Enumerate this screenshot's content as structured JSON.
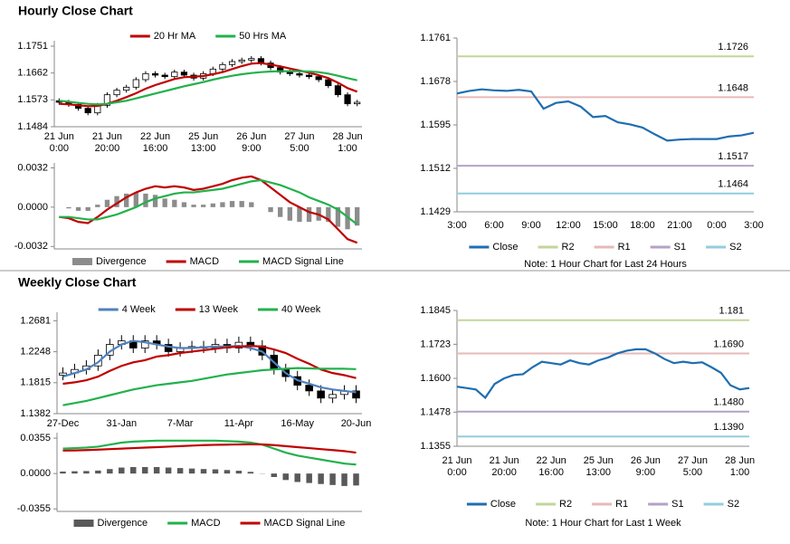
{
  "headings": [
    "Hourly Close Chart",
    "Weekly Close Chart"
  ],
  "chart_data": [
    {
      "type": "candlestick",
      "up_color": "#ffffff",
      "down_color": "#000000",
      "categories": [
        [
          "21 Jun",
          "0:00"
        ],
        null,
        null,
        null,
        null,
        [
          "21 Jun",
          "20:00"
        ],
        null,
        null,
        null,
        null,
        [
          "22 Jun",
          "16:00"
        ],
        null,
        null,
        null,
        null,
        [
          "25 Jun",
          "13:00"
        ],
        null,
        null,
        null,
        null,
        [
          "26 Jun",
          "9:00"
        ],
        null,
        null,
        null,
        null,
        [
          "27 Jun",
          "5:00"
        ],
        null,
        null,
        null,
        null,
        [
          "28 Jun",
          "1:00"
        ],
        null
      ],
      "open": [
        1.157,
        1.1565,
        1.1558,
        1.1545,
        1.153,
        1.1555,
        1.159,
        1.1605,
        1.1615,
        1.164,
        1.166,
        1.1655,
        1.165,
        1.1665,
        1.1655,
        1.1645,
        1.166,
        1.1675,
        1.169,
        1.17,
        1.1705,
        1.171,
        1.1695,
        1.168,
        1.1665,
        1.166,
        1.1655,
        1.165,
        1.164,
        1.162,
        1.159,
        1.156
      ],
      "high": [
        1.1578,
        1.1573,
        1.1566,
        1.1553,
        1.1563,
        1.1598,
        1.1613,
        1.1623,
        1.1648,
        1.1668,
        1.1668,
        1.1663,
        1.1673,
        1.1673,
        1.1663,
        1.1668,
        1.1683,
        1.1698,
        1.1708,
        1.1713,
        1.1718,
        1.1718,
        1.1703,
        1.1688,
        1.1673,
        1.1668,
        1.1663,
        1.1658,
        1.1648,
        1.1628,
        1.1598,
        1.1573
      ],
      "low": [
        1.1557,
        1.155,
        1.1537,
        1.1522,
        1.1522,
        1.1547,
        1.1582,
        1.1597,
        1.1607,
        1.1632,
        1.1647,
        1.1642,
        1.1642,
        1.1647,
        1.1637,
        1.1637,
        1.1652,
        1.1667,
        1.1682,
        1.1692,
        1.1697,
        1.1687,
        1.1672,
        1.1657,
        1.1652,
        1.1647,
        1.1642,
        1.1632,
        1.1612,
        1.1582,
        1.1552,
        1.1552
      ],
      "close": [
        1.1565,
        1.1558,
        1.1545,
        1.153,
        1.1555,
        1.159,
        1.1605,
        1.1615,
        1.164,
        1.166,
        1.1655,
        1.165,
        1.1665,
        1.1655,
        1.1645,
        1.166,
        1.1675,
        1.169,
        1.17,
        1.1705,
        1.171,
        1.1695,
        1.168,
        1.1665,
        1.166,
        1.1655,
        1.165,
        1.164,
        1.162,
        1.159,
        1.156,
        1.1565
      ],
      "series": [
        {
          "name": "20 Hr MA",
          "color": "#c00000",
          "type": "line",
          "values": [
            1.156,
            1.1558,
            1.1555,
            1.1552,
            1.1553,
            1.156,
            1.157,
            1.1582,
            1.1595,
            1.161,
            1.1622,
            1.1632,
            1.1642,
            1.1648,
            1.165,
            1.1652,
            1.1658,
            1.1665,
            1.1675,
            1.1685,
            1.1693,
            1.1695,
            1.169,
            1.1684,
            1.1677,
            1.167,
            1.1663,
            1.1655,
            1.1645,
            1.163,
            1.1612,
            1.16
          ]
        },
        {
          "name": "50 Hrs MA",
          "color": "#22b14c",
          "type": "line",
          "values": [
            1.157,
            1.1567,
            1.1563,
            1.156,
            1.1558,
            1.156,
            1.1565,
            1.157,
            1.1578,
            1.1586,
            1.1594,
            1.1602,
            1.161,
            1.1618,
            1.1625,
            1.1632,
            1.164,
            1.1647,
            1.1653,
            1.1658,
            1.1662,
            1.1665,
            1.1667,
            1.1668,
            1.1668,
            1.1668,
            1.1667,
            1.1665,
            1.166,
            1.1653,
            1.1645,
            1.1638
          ]
        }
      ],
      "ylim": [
        1.1484,
        1.1769
      ],
      "yticks": [
        1.1751,
        1.1662,
        1.1573,
        1.1484
      ]
    },
    {
      "type": "macd",
      "series": [
        {
          "name": "Divergence",
          "color": "#8c8c8c",
          "type": "bar",
          "values": [
            0,
            -0.0001,
            -0.0003,
            -0.0003,
            0.0002,
            0.0006,
            0.0009,
            0.0011,
            0.0012,
            0.0011,
            0.001,
            0.0007,
            0.0006,
            0.0004,
            0.0002,
            0.0002,
            0.0003,
            0.0004,
            0.0005,
            0.0005,
            0.0004,
            0,
            -0.0004,
            -0.0008,
            -0.0011,
            -0.0012,
            -0.0012,
            -0.0011,
            -0.0012,
            -0.0016,
            -0.0018,
            -0.0015
          ]
        },
        {
          "name": "MACD",
          "color": "#c00000",
          "type": "line",
          "values": [
            -0.0008,
            -0.0009,
            -0.0012,
            -0.0013,
            -0.0008,
            -0.0002,
            0.0003,
            0.0008,
            0.0012,
            0.0015,
            0.0017,
            0.0016,
            0.0017,
            0.0016,
            0.0014,
            0.0015,
            0.0017,
            0.0019,
            0.0022,
            0.0024,
            0.0025,
            0.0022,
            0.0016,
            0.001,
            0.0004,
            0,
            -0.0004,
            -0.0006,
            -0.001,
            -0.0018,
            -0.0026,
            -0.0029
          ]
        },
        {
          "name": "MACD Signal Line",
          "color": "#22b14c",
          "type": "line",
          "values": [
            -0.0008,
            -0.0008,
            -0.0009,
            -0.001,
            -0.001,
            -0.0008,
            -0.0006,
            -0.0003,
            0,
            0.0004,
            0.0007,
            0.0009,
            0.0011,
            0.0012,
            0.0012,
            0.0013,
            0.0014,
            0.0015,
            0.0017,
            0.0019,
            0.0021,
            0.0022,
            0.002,
            0.0018,
            0.0015,
            0.0012,
            0.0008,
            0.0005,
            0.0002,
            -0.0002,
            -0.0008,
            -0.0014
          ]
        }
      ],
      "ylim": [
        -0.0034,
        0.0036
      ],
      "yticks": [
        0.0032,
        {
          "value": 0,
          "label": "0.0000"
        },
        -0.0032
      ]
    },
    {
      "type": "line",
      "categories": [
        "3:00",
        null,
        null,
        "6:00",
        null,
        null,
        "9:00",
        null,
        null,
        "12:00",
        null,
        null,
        "15:00",
        null,
        null,
        "18:00",
        null,
        null,
        "21:00",
        null,
        null,
        "0:00",
        null,
        null,
        "3:00"
      ],
      "series": [
        {
          "name": "Close",
          "color": "#1f6eb0",
          "type": "line",
          "values": [
            1.1655,
            1.166,
            1.1663,
            1.1661,
            1.166,
            1.1662,
            1.1659,
            1.1626,
            1.1637,
            1.164,
            1.163,
            1.161,
            1.1612,
            1.16,
            1.1596,
            1.159,
            1.1577,
            1.1565,
            1.1567,
            1.1568,
            1.1568,
            1.1568,
            1.1573,
            1.1575,
            1.158
          ]
        }
      ],
      "levels": [
        {
          "name": "R2",
          "color": "#c3d69b",
          "value": 1.1726
        },
        {
          "name": "R1",
          "color": "#e6b9b8",
          "value": 1.1648
        },
        {
          "name": "S1",
          "color": "#b3a2c7",
          "value": 1.1517
        },
        {
          "name": "S2",
          "color": "#93cddd",
          "value": 1.1464
        }
      ],
      "ylim": [
        1.1429,
        1.1761
      ],
      "yticks": [
        1.1761,
        1.1678,
        1.1595,
        1.1512,
        1.1429
      ],
      "note": "Note: 1 Hour Chart for Last 24 Hours"
    },
    {
      "type": "candlestick",
      "up_color": "#ffffff",
      "down_color": "#000000",
      "categories": [
        "27-Dec",
        null,
        null,
        null,
        null,
        "31-Jan",
        null,
        null,
        null,
        null,
        "7-Mar",
        null,
        null,
        null,
        null,
        "11-Apr",
        null,
        null,
        null,
        null,
        "16-May",
        null,
        null,
        null,
        null,
        "20-Jun"
      ],
      "open": [
        1.192,
        1.195,
        1.2,
        1.205,
        1.22,
        1.235,
        1.24,
        1.23,
        1.24,
        1.235,
        1.225,
        1.23,
        1.232,
        1.23,
        1.235,
        1.23,
        1.238,
        1.233,
        1.22,
        1.2,
        1.19,
        1.178,
        1.17,
        1.16,
        1.165,
        1.17
      ],
      "high": [
        1.203,
        1.208,
        1.213,
        1.228,
        1.243,
        1.248,
        1.248,
        1.248,
        1.248,
        1.243,
        1.238,
        1.24,
        1.24,
        1.243,
        1.243,
        1.246,
        1.246,
        1.241,
        1.228,
        1.208,
        1.198,
        1.186,
        1.178,
        1.173,
        1.178,
        1.178
      ],
      "low": [
        1.185,
        1.188,
        1.193,
        1.198,
        1.213,
        1.228,
        1.223,
        1.223,
        1.228,
        1.218,
        1.218,
        1.223,
        1.223,
        1.223,
        1.223,
        1.223,
        1.226,
        1.213,
        1.193,
        1.183,
        1.171,
        1.163,
        1.153,
        1.153,
        1.158,
        1.153
      ],
      "close": [
        1.195,
        1.2,
        1.205,
        1.22,
        1.235,
        1.24,
        1.23,
        1.24,
        1.235,
        1.225,
        1.23,
        1.232,
        1.23,
        1.235,
        1.23,
        1.238,
        1.233,
        1.22,
        1.2,
        1.19,
        1.178,
        1.17,
        1.16,
        1.165,
        1.17,
        1.16
      ],
      "series": [
        {
          "name": "4 Week",
          "color": "#4f81bd",
          "type": "line",
          "values": [
            1.19,
            1.195,
            1.2,
            1.21,
            1.225,
            1.235,
            1.24,
            1.238,
            1.235,
            1.232,
            1.23,
            1.23,
            1.231,
            1.232,
            1.232,
            1.233,
            1.23,
            1.225,
            1.21,
            1.195,
            1.185,
            1.18,
            1.175,
            1.172,
            1.17,
            1.168
          ]
        },
        {
          "name": "13 Week",
          "color": "#c00000",
          "type": "line",
          "values": [
            1.18,
            1.182,
            1.185,
            1.19,
            1.198,
            1.205,
            1.21,
            1.213,
            1.218,
            1.22,
            1.223,
            1.225,
            1.227,
            1.229,
            1.231,
            1.232,
            1.233,
            1.232,
            1.228,
            1.223,
            1.215,
            1.208,
            1.2,
            1.195,
            1.192,
            1.188
          ]
        },
        {
          "name": "40 Week",
          "color": "#22b14c",
          "type": "line",
          "values": [
            1.15,
            1.153,
            1.156,
            1.16,
            1.164,
            1.168,
            1.172,
            1.175,
            1.178,
            1.18,
            1.182,
            1.184,
            1.187,
            1.19,
            1.193,
            1.195,
            1.197,
            1.199,
            1.2,
            1.201,
            1.202,
            1.2015,
            1.201,
            1.201,
            1.201,
            1.2005
          ]
        }
      ],
      "ylim": [
        1.1382,
        1.28
      ],
      "yticks": [
        1.2681,
        1.2248,
        1.1815,
        1.1382
      ]
    },
    {
      "type": "macd",
      "series": [
        {
          "name": "Divergence",
          "color": "#595959",
          "type": "bar",
          "values": [
            0.002,
            0.0023,
            0.0025,
            0.003,
            0.0045,
            0.006,
            0.0065,
            0.0065,
            0.0065,
            0.006,
            0.0055,
            0.005,
            0.0045,
            0.0042,
            0.0035,
            0.0028,
            0.0017,
            -0.0002,
            -0.0035,
            -0.0065,
            -0.0085,
            -0.0095,
            -0.0105,
            -0.0115,
            -0.0125,
            -0.012
          ]
        },
        {
          "name": "MACD",
          "color": "#22b14c",
          "type": "line",
          "values": [
            0.025,
            0.0255,
            0.026,
            0.027,
            0.029,
            0.031,
            0.032,
            0.0325,
            0.033,
            0.033,
            0.033,
            0.033,
            0.033,
            0.033,
            0.0325,
            0.032,
            0.031,
            0.029,
            0.025,
            0.021,
            0.018,
            0.016,
            0.014,
            0.012,
            0.01,
            0.009
          ]
        },
        {
          "name": "MACD Signal Line",
          "color": "#c00000",
          "type": "line",
          "values": [
            0.023,
            0.0232,
            0.0235,
            0.024,
            0.0245,
            0.025,
            0.0255,
            0.026,
            0.0265,
            0.027,
            0.0275,
            0.028,
            0.0285,
            0.0288,
            0.029,
            0.0292,
            0.0293,
            0.0292,
            0.0285,
            0.0275,
            0.0265,
            0.0255,
            0.0245,
            0.0235,
            0.0225,
            0.021
          ]
        }
      ],
      "ylim": [
        -0.038,
        0.041
      ],
      "yticks": [
        0.0355,
        {
          "value": 0,
          "label": "0.0000"
        },
        -0.0355
      ]
    },
    {
      "type": "line",
      "categories": [
        [
          "21 Jun",
          "0:00"
        ],
        null,
        null,
        null,
        null,
        [
          "21 Jun",
          "20:00"
        ],
        null,
        null,
        null,
        null,
        [
          "22 Jun",
          "16:00"
        ],
        null,
        null,
        null,
        null,
        [
          "25 Jun",
          "13:00"
        ],
        null,
        null,
        null,
        null,
        [
          "26 Jun",
          "9:00"
        ],
        null,
        null,
        null,
        null,
        [
          "27 Jun",
          "5:00"
        ],
        null,
        null,
        null,
        null,
        [
          "28 Jun",
          "1:00"
        ],
        null
      ],
      "series": [
        {
          "name": "Close",
          "color": "#1f6eb0",
          "type": "line",
          "values": [
            1.157,
            1.1565,
            1.156,
            1.153,
            1.158,
            1.16,
            1.1612,
            1.1615,
            1.164,
            1.166,
            1.1655,
            1.165,
            1.1665,
            1.1655,
            1.165,
            1.1665,
            1.1675,
            1.169,
            1.17,
            1.1705,
            1.1705,
            1.169,
            1.167,
            1.1655,
            1.166,
            1.1655,
            1.1658,
            1.164,
            1.162,
            1.1575,
            1.156,
            1.1565
          ]
        }
      ],
      "levels": [
        {
          "name": "R2",
          "color": "#c3d69b",
          "value": 1.181
        },
        {
          "name": "R1",
          "color": "#e6b9b8",
          "value": 1.169,
          "label": "1.1690"
        },
        {
          "name": "S1",
          "color": "#b3a2c7",
          "value": 1.148,
          "label": "1.1480"
        },
        {
          "name": "S2",
          "color": "#93cddd",
          "value": 1.139,
          "label": "1.1390"
        }
      ],
      "ylim": [
        1.1355,
        1.1845
      ],
      "yticks": [
        1.1845,
        1.1723,
        {
          "value": 1.16,
          "label": "1.1600"
        },
        1.1478,
        1.1355
      ],
      "note": "Note: 1 Hour Chart for Last 1 Week"
    }
  ]
}
